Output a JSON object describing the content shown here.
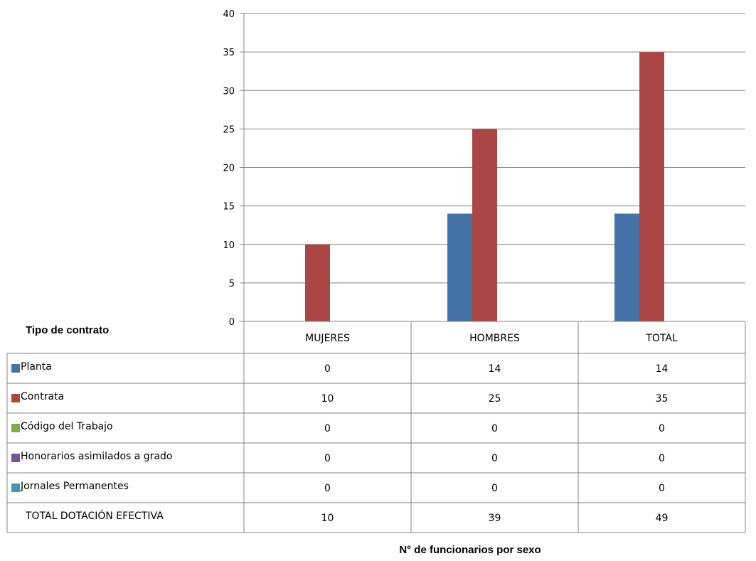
{
  "chart_data": {
    "type": "bar",
    "table_header": "Tipo de contrato",
    "categories": [
      "MUJERES",
      "HOMBRES",
      "TOTAL"
    ],
    "series": [
      {
        "name": "Planta",
        "values": [
          0,
          14,
          14
        ],
        "color": "#4572a7"
      },
      {
        "name": "Contrata",
        "values": [
          10,
          25,
          35
        ],
        "color": "#aa4643"
      },
      {
        "name": "Código del Trabajo",
        "values": [
          0,
          0,
          0
        ],
        "color": "#89a54e"
      },
      {
        "name": "Honorarios asimilados a grado",
        "values": [
          0,
          0,
          0
        ],
        "color": "#71588f"
      },
      {
        "name": "Jornales Permanentes",
        "values": [
          0,
          0,
          0
        ],
        "color": "#4198af"
      }
    ],
    "total_row": {
      "label": "TOTAL DOTACIÓN EFECTIVA",
      "values": [
        "10",
        "39",
        "49"
      ]
    },
    "ylim": [
      0,
      40
    ],
    "yticks": [
      "0",
      "5",
      "10",
      "15",
      "20",
      "25",
      "30",
      "35",
      "40"
    ],
    "grid": true,
    "legend": "data-table",
    "xlabel": "N° de funcionarios por sexo"
  }
}
